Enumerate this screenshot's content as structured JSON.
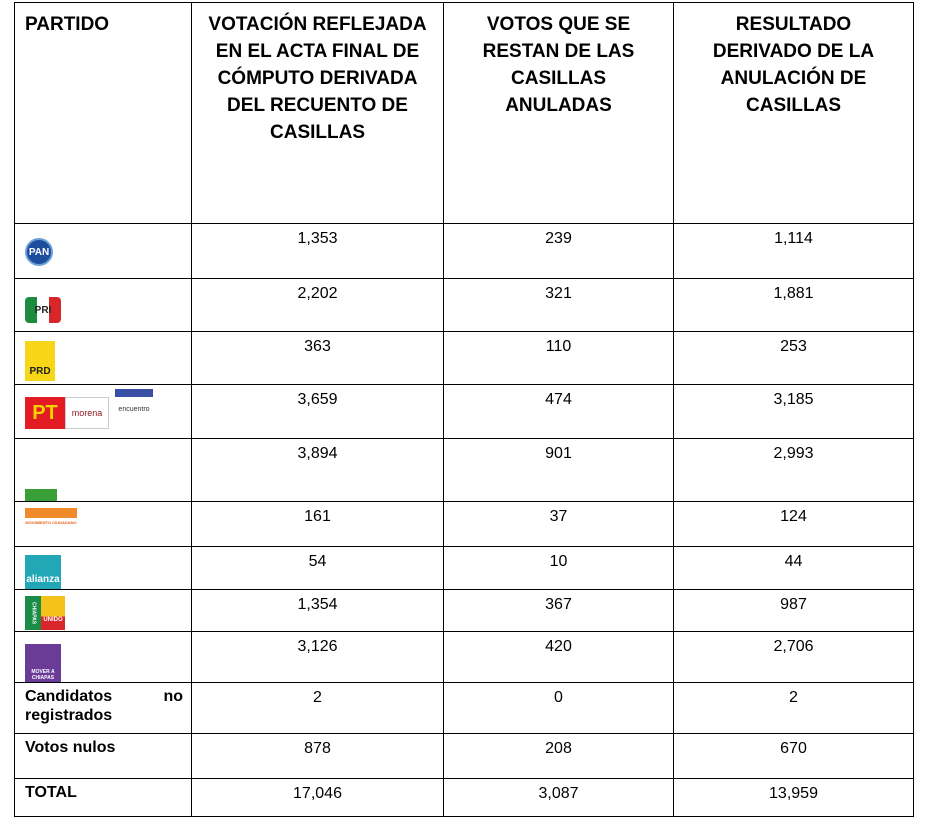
{
  "table": {
    "header": [
      "PARTIDO",
      "VOTACIÓN REFLEJADA EN EL ACTA FINAL DE CÓMPUTO DERIVADA DEL RECUENTO DE CASILLAS",
      "VOTOS QUE SE RESTAN DE LAS CASILLAS ANULADAS",
      "RESULTADO DERIVADO DE LA ANULACIÓN DE CASILLAS"
    ],
    "rows": [
      {
        "logo": [
          "PAN"
        ],
        "values": [
          "1,353",
          "239",
          "1,114"
        ]
      },
      {
        "logo": [
          "PRI"
        ],
        "values": [
          "2,202",
          "321",
          "1,881"
        ]
      },
      {
        "logo": [
          "PRD"
        ],
        "values": [
          "363",
          "110",
          "253"
        ]
      },
      {
        "logo": [
          "PT",
          "morena",
          "encuentro"
        ],
        "values": [
          "3,659",
          "474",
          "3,185"
        ]
      },
      {
        "logo": [
          "VERDE"
        ],
        "values": [
          "3,894",
          "901",
          "2,993"
        ]
      },
      {
        "logo": [
          "MOVIMIENTO CIUDADANO"
        ],
        "values": [
          "161",
          "37",
          "124"
        ]
      },
      {
        "logo": [
          "alianza"
        ],
        "values": [
          "54",
          "10",
          "44"
        ]
      },
      {
        "logo": [
          "CHIAPAS",
          "UNIDO"
        ],
        "values": [
          "1,354",
          "367",
          "987"
        ]
      },
      {
        "logo": [
          "MOVER A CHIAPAS"
        ],
        "values": [
          "3,126",
          "420",
          "2,706"
        ]
      },
      {
        "party": "Candidatos no registrados",
        "values": [
          "2",
          "0",
          "2"
        ]
      },
      {
        "party": "Votos nulos",
        "values": [
          "878",
          "208",
          "670"
        ]
      },
      {
        "party": "TOTAL",
        "values": [
          "17,046",
          "3,087",
          "13,959"
        ]
      }
    ]
  }
}
